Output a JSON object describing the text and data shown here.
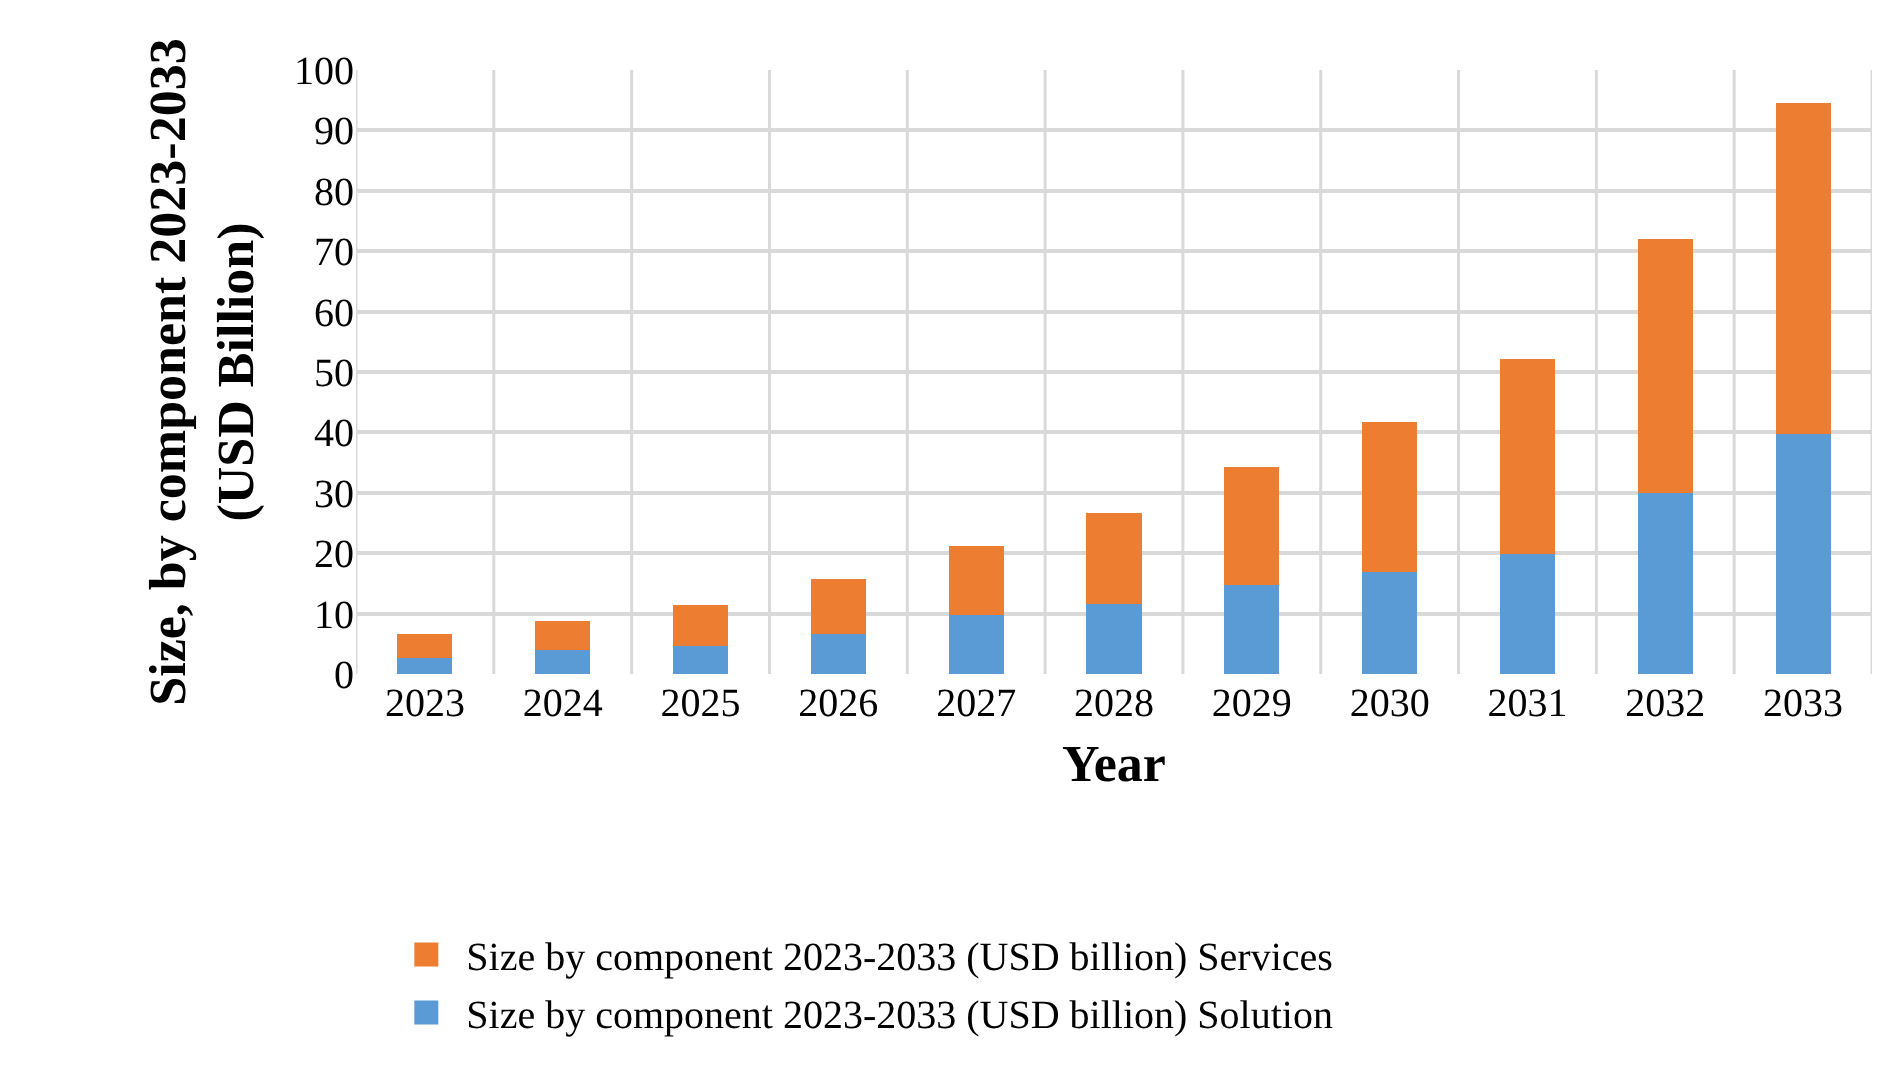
{
  "chart_data": {
    "type": "bar",
    "stacked": true,
    "xlabel": "Year",
    "ylabel": "Size, by component 2023-2033\n(USD Billion)",
    "categories": [
      "2023",
      "2024",
      "2025",
      "2026",
      "2027",
      "2028",
      "2029",
      "2030",
      "2031",
      "2032",
      "2033"
    ],
    "series": [
      {
        "name": "Size by component 2023-2033 (USD billion) Solution",
        "color": "#5b9bd5",
        "values": [
          2.6,
          3.9,
          4.6,
          6.7,
          9.8,
          11.6,
          14.8,
          16.9,
          19.9,
          29.9,
          39.8
        ]
      },
      {
        "name": "Size by component 2023-2033 (USD billion) Services",
        "color": "#ed7d31",
        "values": [
          4.1,
          4.9,
          6.8,
          9.0,
          11.4,
          15.1,
          19.4,
          24.9,
          32.2,
          42.1,
          54.7
        ]
      }
    ],
    "ylim": [
      0,
      100
    ],
    "yticks": [
      0,
      10,
      20,
      30,
      40,
      50,
      60,
      70,
      80,
      90,
      100
    ],
    "grid": true,
    "legend": "bottom"
  }
}
